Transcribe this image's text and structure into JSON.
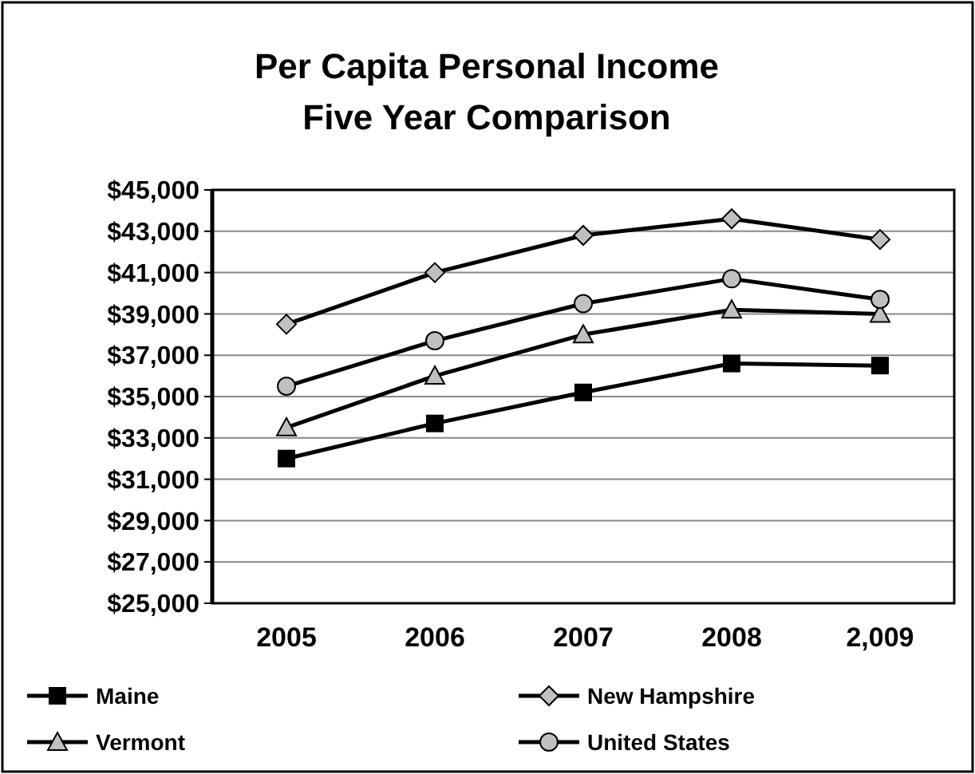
{
  "chart_data": {
    "type": "line",
    "title": "Per Capita Personal Income",
    "subtitle": "Five Year Comparison",
    "categories": [
      "2005",
      "2006",
      "2007",
      "2008",
      "2,009"
    ],
    "series": [
      {
        "name": "Maine",
        "color": "#000000",
        "marker": "square",
        "values": [
          32000,
          33700,
          35200,
          36600,
          36500
        ]
      },
      {
        "name": "New Hampshire",
        "color": "#000000",
        "marker": "diamond",
        "values": [
          38500,
          41000,
          42800,
          43600,
          42600
        ]
      },
      {
        "name": "Vermont",
        "color": "#000000",
        "marker": "triangle",
        "values": [
          33500,
          36000,
          38000,
          39200,
          39000
        ]
      },
      {
        "name": "United States",
        "color": "#000000",
        "marker": "circle",
        "values": [
          35500,
          37700,
          39500,
          40700,
          39700
        ]
      }
    ],
    "ylim": [
      25000,
      45000
    ],
    "yticks": [
      {
        "value": 25000,
        "label": "$25,000"
      },
      {
        "value": 27000,
        "label": "$27,000"
      },
      {
        "value": 29000,
        "label": "$29,000"
      },
      {
        "value": 31000,
        "label": "$31,000"
      },
      {
        "value": 33000,
        "label": "$33,000"
      },
      {
        "value": 35000,
        "label": "$35,000"
      },
      {
        "value": 37000,
        "label": "$37,000"
      },
      {
        "value": 39000,
        "label": "$39,000"
      },
      {
        "value": 41000,
        "label": "$41,000"
      },
      {
        "value": 43000,
        "label": "$43,000"
      },
      {
        "value": 45000,
        "label": "$45,000"
      }
    ],
    "grid": "y",
    "legend": "bottom",
    "line_style": "solid"
  }
}
